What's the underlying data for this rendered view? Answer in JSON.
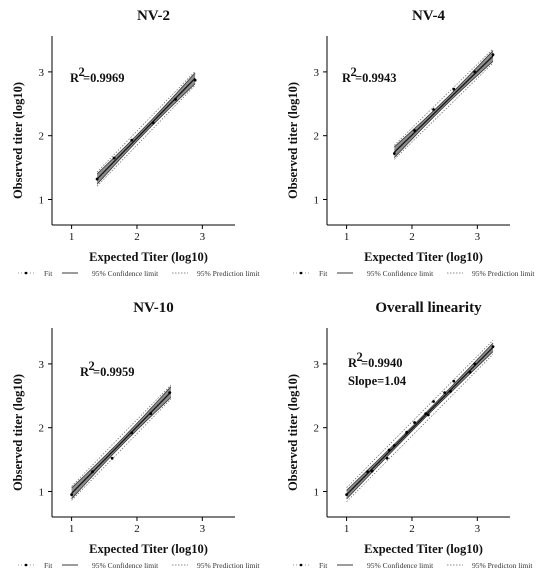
{
  "chart_data": [
    {
      "type": "scatter",
      "title": "NV-2",
      "xlabel": "Expected Titer (log10)",
      "ylabel": "Observed titer (log10)",
      "xlim": [
        0.7,
        3.5
      ],
      "ylim": [
        0.6,
        3.5
      ],
      "xticks": [
        1,
        2,
        3
      ],
      "yticks": [
        1,
        2,
        3
      ],
      "annotations": [
        "R",
        "2",
        "=0.9969"
      ],
      "x": [
        1.39,
        1.65,
        1.92,
        2.25,
        2.59,
        2.89
      ],
      "y": [
        1.32,
        1.65,
        1.93,
        2.2,
        2.57,
        2.87
      ],
      "fit": {
        "x": [
          1.39,
          2.89
        ],
        "y": [
          1.32,
          2.9
        ]
      },
      "legend": [
        "Fit",
        "95% Confidence limit",
        "95% Prediction limit"
      ]
    },
    {
      "type": "scatter",
      "title": "NV-4",
      "xlabel": "Expected Titer (log10)",
      "ylabel": "Observed titer (log10)",
      "xlim": [
        0.7,
        3.5
      ],
      "ylim": [
        0.6,
        3.5
      ],
      "xticks": [
        1,
        2,
        3
      ],
      "yticks": [
        1,
        2,
        3
      ],
      "annotations": [
        "R",
        "2",
        "=0.9943"
      ],
      "x": [
        1.73,
        2.04,
        2.33,
        2.64,
        2.96,
        3.24
      ],
      "y": [
        1.72,
        2.08,
        2.41,
        2.73,
        3.0,
        3.27
      ],
      "fit": {
        "x": [
          1.73,
          3.24
        ],
        "y": [
          1.74,
          3.25
        ]
      },
      "legend": [
        "Fit",
        "95% Confidence limit",
        "95% Prediction limit"
      ]
    },
    {
      "type": "scatter",
      "title": "NV-10",
      "xlabel": "Expected Titer (log10)",
      "ylabel": "Observed titer (log10)",
      "xlim": [
        0.7,
        3.5
      ],
      "ylim": [
        0.6,
        3.5
      ],
      "xticks": [
        1,
        2,
        3
      ],
      "yticks": [
        1,
        2,
        3
      ],
      "annotations": [
        "R",
        "2",
        "=0.9959"
      ],
      "x": [
        1.0,
        1.32,
        1.62,
        1.92,
        2.21,
        2.5
      ],
      "y": [
        0.95,
        1.31,
        1.52,
        1.92,
        2.22,
        2.55
      ],
      "fit": {
        "x": [
          1.0,
          2.52
        ],
        "y": [
          0.97,
          2.56
        ]
      },
      "legend": [
        "Fit",
        "95% Confidence limit",
        "95% Prediction limit"
      ]
    },
    {
      "type": "scatter",
      "title": "Overall linearity",
      "xlabel": "Expected Titer (log10)",
      "ylabel": "Observed titer (log10)",
      "xlim": [
        0.7,
        3.5
      ],
      "ylim": [
        0.6,
        3.5
      ],
      "xticks": [
        1,
        2,
        3
      ],
      "yticks": [
        1,
        2,
        3
      ],
      "annotations": [
        "R",
        "2",
        "=0.9940",
        "Slope=1.04"
      ],
      "x": [
        1.0,
        1.32,
        1.39,
        1.62,
        1.65,
        1.73,
        1.92,
        1.92,
        2.04,
        2.21,
        2.25,
        2.33,
        2.5,
        2.59,
        2.64,
        2.89,
        2.96,
        3.24
      ],
      "y": [
        0.95,
        1.31,
        1.32,
        1.52,
        1.65,
        1.72,
        1.92,
        1.93,
        2.08,
        2.22,
        2.2,
        2.41,
        2.55,
        2.57,
        2.73,
        2.87,
        3.0,
        3.27
      ],
      "fit": {
        "x": [
          1.0,
          3.24
        ],
        "y": [
          0.95,
          3.26
        ]
      },
      "legend": [
        "Fit",
        "95% Confidence limit",
        "95% Predicton limit"
      ]
    }
  ]
}
